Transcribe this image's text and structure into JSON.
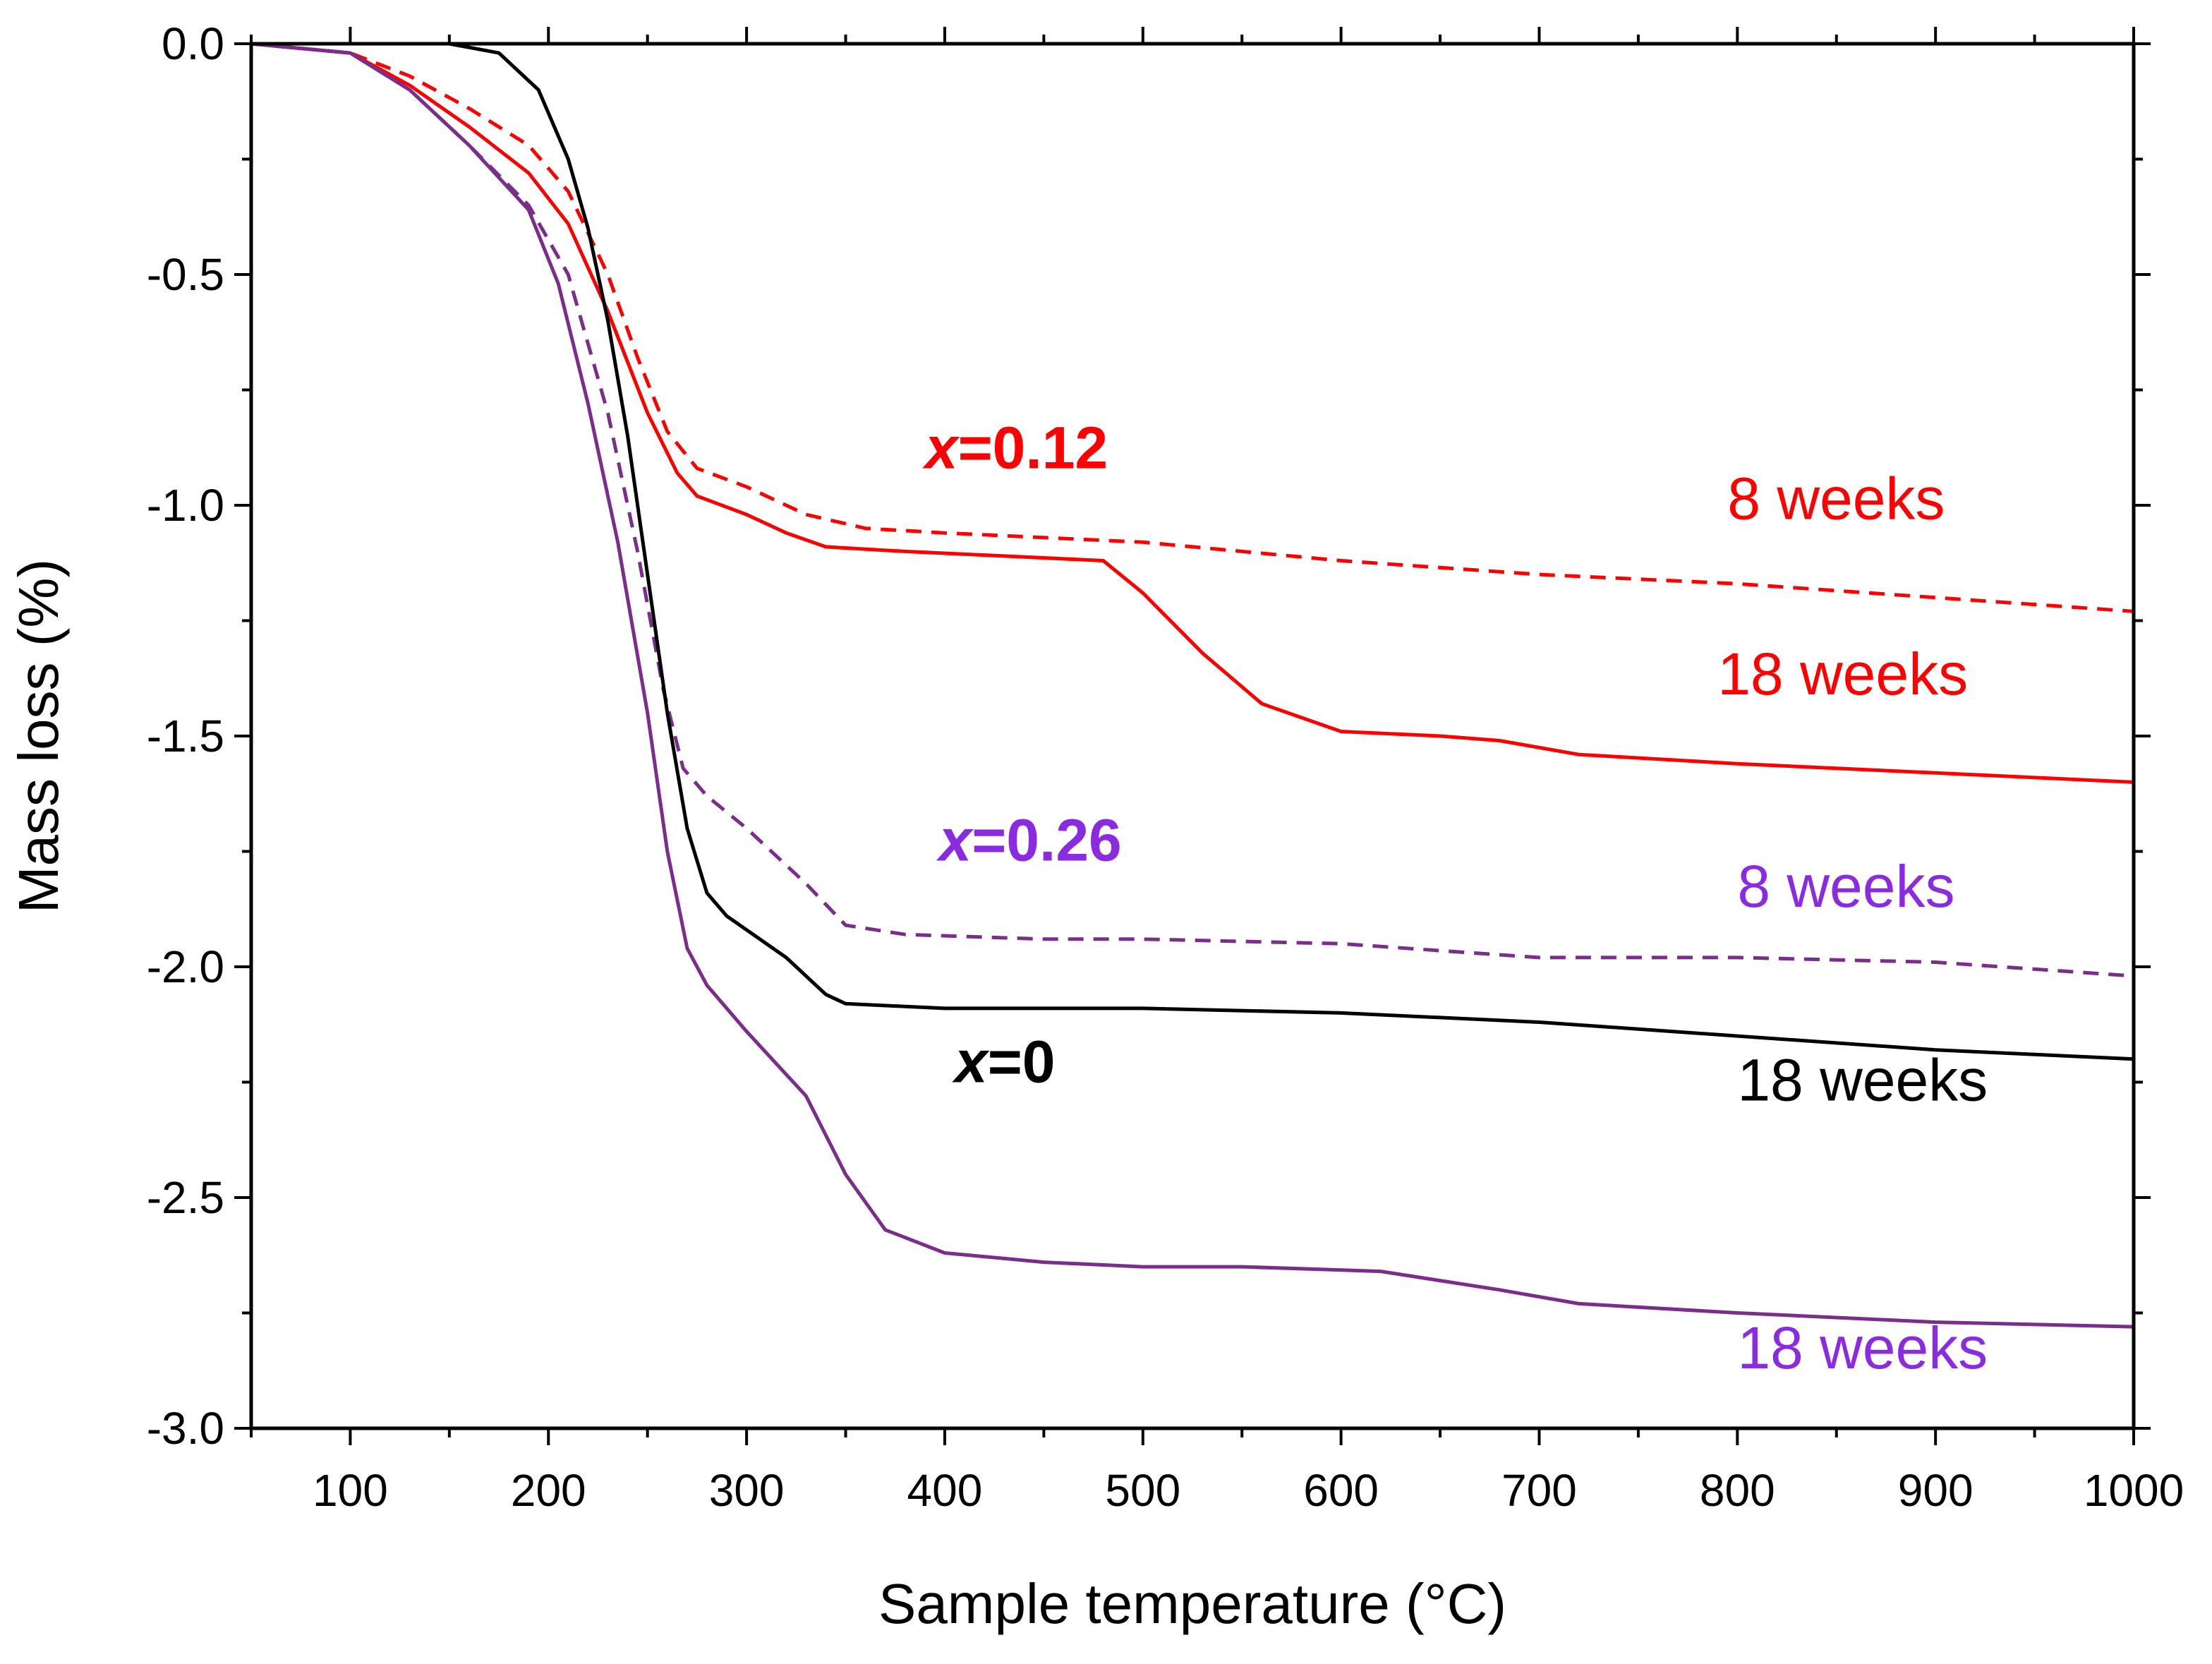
{
  "chart_data": {
    "type": "line",
    "title": "",
    "xlabel": "Sample temperature (°C)",
    "ylabel": "Mass loss (%)",
    "xlim": [
      50,
      1000
    ],
    "ylim": [
      -3.0,
      0.0
    ],
    "xticks": [
      100,
      200,
      300,
      400,
      500,
      600,
      700,
      800,
      900,
      1000
    ],
    "xtick_labels": [
      "100",
      "200",
      "300",
      "400",
      "500",
      "600",
      "700",
      "800",
      "900",
      "1000"
    ],
    "yticks": [
      0.0,
      -0.5,
      -1.0,
      -1.5,
      -2.0,
      -2.5,
      -3.0
    ],
    "ytick_labels": [
      "0.0",
      "-0.5",
      "-1.0",
      "-1.5",
      "-2.0",
      "-2.5",
      "-3.0"
    ],
    "grid": false,
    "series": [
      {
        "name": "x=0.12, 8 weeks",
        "color": "#ff0000",
        "dash": true,
        "x": [
          50,
          100,
          130,
          160,
          190,
          210,
          230,
          245,
          260,
          275,
          300,
          330,
          360,
          400,
          450,
          500,
          600,
          700,
          800,
          900,
          1000
        ],
        "y": [
          0,
          -0.02,
          -0.07,
          -0.14,
          -0.22,
          -0.32,
          -0.5,
          -0.68,
          -0.84,
          -0.92,
          -0.96,
          -1.02,
          -1.05,
          -1.06,
          -1.07,
          -1.08,
          -1.12,
          -1.15,
          -1.17,
          -1.2,
          -1.23
        ]
      },
      {
        "name": "x=0.12, 18 weeks",
        "color": "#ff0000",
        "dash": false,
        "x": [
          50,
          100,
          130,
          160,
          190,
          210,
          230,
          250,
          265,
          275,
          300,
          320,
          340,
          380,
          430,
          480,
          500,
          530,
          560,
          600,
          650,
          680,
          720,
          800,
          900,
          1000
        ],
        "y": [
          0,
          -0.02,
          -0.09,
          -0.18,
          -0.28,
          -0.39,
          -0.58,
          -0.8,
          -0.93,
          -0.98,
          -1.02,
          -1.06,
          -1.09,
          -1.1,
          -1.11,
          -1.12,
          -1.19,
          -1.32,
          -1.43,
          -1.49,
          -1.5,
          -1.51,
          -1.54,
          -1.56,
          -1.58,
          -1.6
        ]
      },
      {
        "name": "x=0.26, 8 weeks",
        "color": "#7b2d8c",
        "dash": true,
        "x": [
          50,
          100,
          130,
          160,
          190,
          210,
          230,
          245,
          258,
          268,
          280,
          300,
          330,
          350,
          380,
          450,
          500,
          600,
          700,
          800,
          900,
          1000
        ],
        "y": [
          0,
          -0.02,
          -0.1,
          -0.22,
          -0.35,
          -0.5,
          -0.8,
          -1.1,
          -1.4,
          -1.57,
          -1.63,
          -1.7,
          -1.82,
          -1.91,
          -1.93,
          -1.94,
          -1.94,
          -1.95,
          -1.98,
          -1.98,
          -1.99,
          -2.02
        ]
      },
      {
        "name": "x=0.26, 18 weeks",
        "color": "#7b2d8c",
        "dash": false,
        "x": [
          50,
          100,
          130,
          160,
          190,
          205,
          220,
          235,
          250,
          260,
          270,
          280,
          300,
          330,
          350,
          370,
          400,
          450,
          500,
          550,
          620,
          680,
          720,
          800,
          900,
          1000
        ],
        "y": [
          0,
          -0.02,
          -0.1,
          -0.22,
          -0.36,
          -0.52,
          -0.78,
          -1.08,
          -1.45,
          -1.75,
          -1.96,
          -2.04,
          -2.14,
          -2.28,
          -2.45,
          -2.57,
          -2.62,
          -2.64,
          -2.65,
          -2.65,
          -2.66,
          -2.7,
          -2.73,
          -2.75,
          -2.77,
          -2.78
        ]
      },
      {
        "name": "x=0, 18 weeks",
        "color": "#000000",
        "dash": false,
        "x": [
          50,
          100,
          150,
          175,
          195,
          210,
          220,
          230,
          240,
          250,
          260,
          270,
          280,
          290,
          300,
          320,
          340,
          350,
          400,
          500,
          600,
          700,
          800,
          900,
          1000
        ],
        "y": [
          0,
          0,
          0,
          -0.02,
          -0.1,
          -0.25,
          -0.4,
          -0.6,
          -0.85,
          -1.15,
          -1.45,
          -1.7,
          -1.84,
          -1.89,
          -1.92,
          -1.98,
          -2.06,
          -2.08,
          -2.09,
          -2.09,
          -2.1,
          -2.12,
          -2.15,
          -2.18,
          -2.2
        ]
      }
    ],
    "annotations": [
      {
        "prefix": "x",
        "suffix": "=0.12",
        "color": "#ff0000",
        "bold": true,
        "x": 390,
        "y": -0.92
      },
      {
        "prefix": "x",
        "suffix": "=0.26",
        "color": "#8a2be2",
        "bold": true,
        "x": 397,
        "y": -1.77
      },
      {
        "prefix": "x",
        "suffix": "=0",
        "color": "#000000",
        "bold": true,
        "x": 405,
        "y": -2.25
      },
      {
        "text": "8 weeks",
        "color": "#ff0000",
        "bold": false,
        "x": 795,
        "y": -1.03
      },
      {
        "text": "18 weeks",
        "color": "#ff0000",
        "bold": false,
        "x": 790,
        "y": -1.41
      },
      {
        "text": "8 weeks",
        "color": "#8a2be2",
        "bold": false,
        "x": 800,
        "y": -1.87
      },
      {
        "text": "18 weeks",
        "color": "#000000",
        "bold": false,
        "x": 800,
        "y": -2.29
      },
      {
        "text": "18 weeks",
        "color": "#8a2be2",
        "bold": false,
        "x": 800,
        "y": -2.87
      }
    ]
  }
}
